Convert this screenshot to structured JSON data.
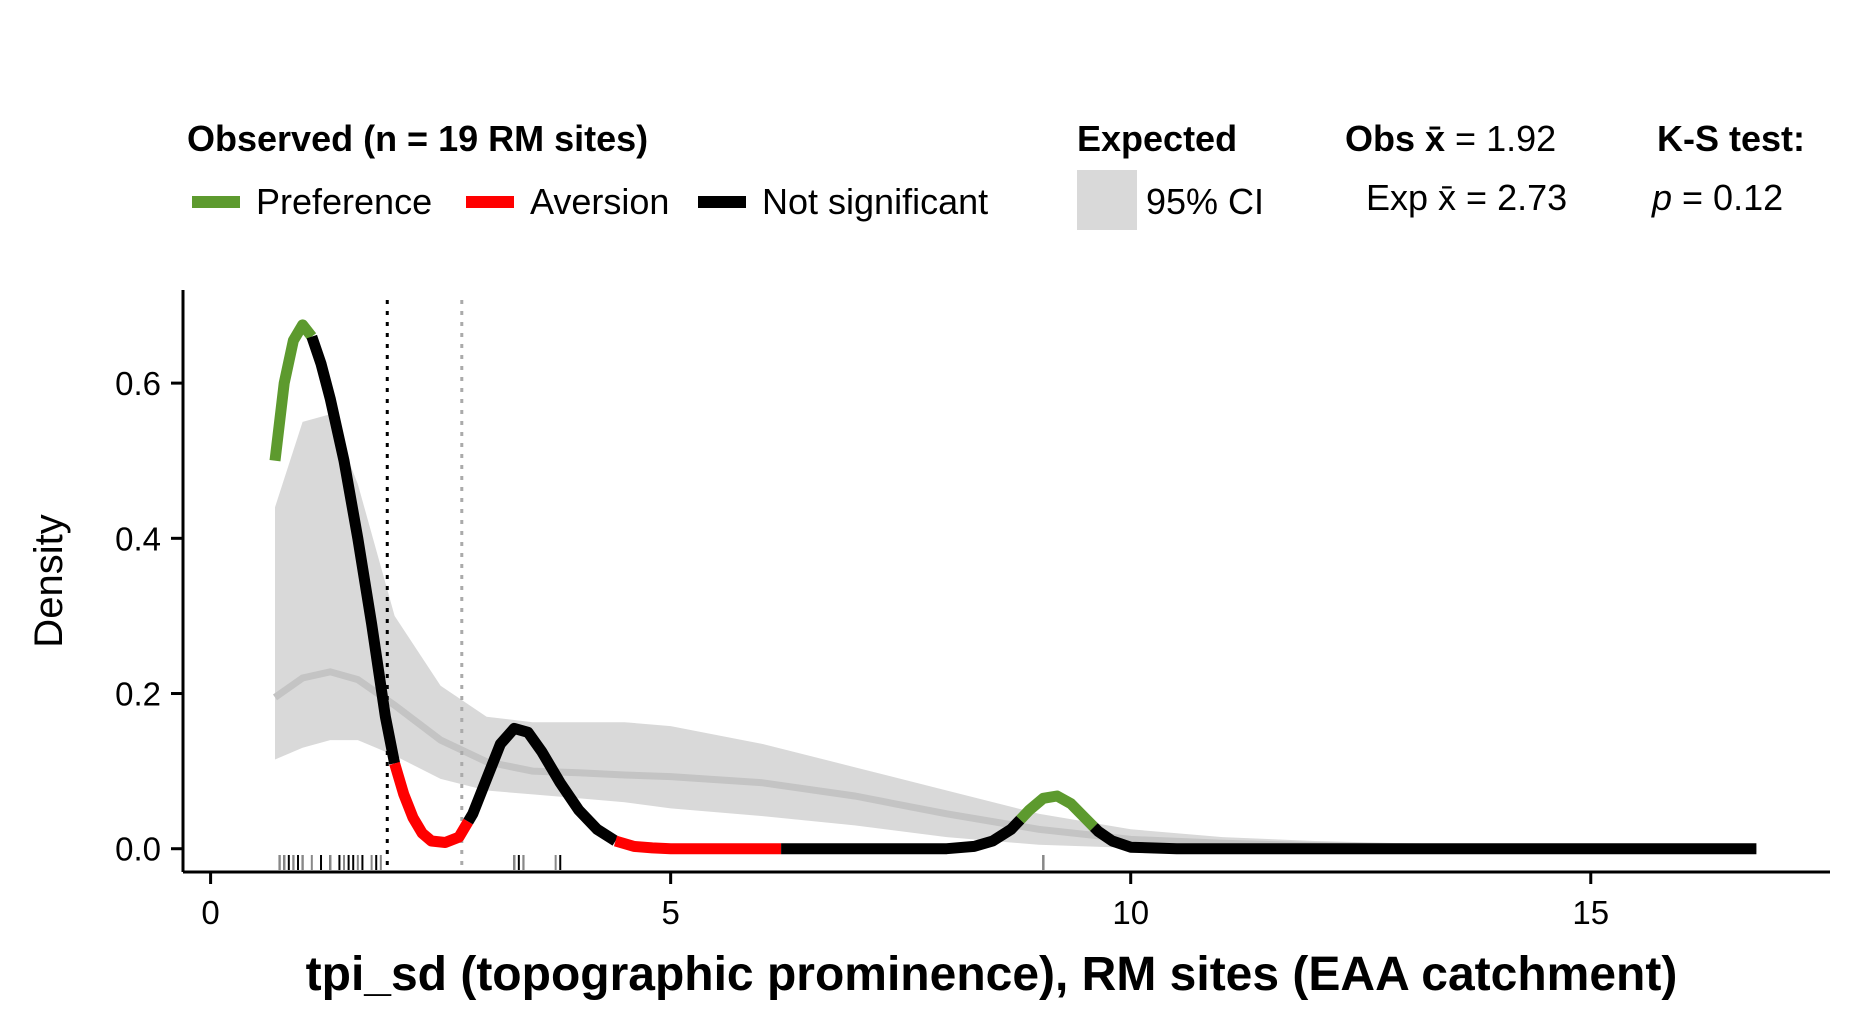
{
  "legend": {
    "observed_title": "Observed (n = 19 RM sites)",
    "preference": "Preference",
    "aversion": "Aversion",
    "not_significant": "Not significant",
    "expected_title": "Expected",
    "ci_label": "95% CI",
    "obs_mean_prefix": "Obs",
    "obs_mean_symbol": "x̄",
    "obs_mean_value": " = 1.92",
    "exp_mean_prefix": "Exp",
    "exp_mean_symbol": "x̄",
    "exp_mean_value": " = 2.73",
    "ks_title": "K-S test:",
    "ks_p_symbol": "p",
    "ks_p_value": " = 0.12"
  },
  "colors": {
    "preference": "#5d9a2e",
    "aversion": "#ff0000",
    "not_significant": "#000000",
    "ci_band": "#d9d9d9",
    "expected_line": "#c4c4c4",
    "obs_mean_line": "#000000",
    "exp_mean_line": "#aaaaaa"
  },
  "chart_data": {
    "type": "line",
    "xlabel": "tpi_sd (topographic prominence), RM sites (EAA catchment)",
    "ylabel": "Density",
    "xlim": [
      -0.3,
      17.6
    ],
    "ylim": [
      -0.03,
      0.72
    ],
    "xticks": [
      0,
      5,
      10,
      15
    ],
    "xtick_labels": [
      "0",
      "5",
      "10",
      "15"
    ],
    "yticks": [
      0.0,
      0.2,
      0.4,
      0.6
    ],
    "ytick_labels": [
      "0.0",
      "0.2",
      "0.4",
      "0.6"
    ],
    "observed_mean": 1.92,
    "expected_mean": 2.73,
    "observed_density": {
      "x": [
        0.7,
        0.8,
        0.9,
        1.0,
        1.1,
        1.2,
        1.3,
        1.45,
        1.6,
        1.75,
        1.9,
        2.0,
        2.1,
        2.2,
        2.3,
        2.4,
        2.55,
        2.7,
        2.85,
        3.0,
        3.15,
        3.3,
        3.45,
        3.6,
        3.8,
        4.0,
        4.2,
        4.4,
        4.6,
        4.8,
        5.0,
        5.5,
        6.0,
        6.5,
        7.0,
        7.5,
        8.0,
        8.3,
        8.5,
        8.7,
        8.9,
        9.05,
        9.2,
        9.35,
        9.5,
        9.65,
        9.8,
        10.0,
        10.5,
        11.0,
        12.0,
        13.0,
        14.0,
        15.0,
        16.0,
        16.8
      ],
      "y": [
        0.5,
        0.6,
        0.655,
        0.675,
        0.66,
        0.625,
        0.58,
        0.5,
        0.4,
        0.29,
        0.17,
        0.11,
        0.07,
        0.04,
        0.02,
        0.01,
        0.008,
        0.015,
        0.045,
        0.09,
        0.135,
        0.155,
        0.15,
        0.125,
        0.085,
        0.05,
        0.025,
        0.01,
        0.003,
        0.001,
        0.0,
        0.0,
        0.0,
        0.0,
        0.0,
        0.0,
        0.0,
        0.003,
        0.01,
        0.025,
        0.05,
        0.065,
        0.068,
        0.058,
        0.04,
        0.022,
        0.01,
        0.002,
        0.0,
        0.0,
        0.0,
        0.0,
        0.0,
        0.0,
        0.0,
        0.0
      ],
      "segments": [
        {
          "class": "preference",
          "x_range": [
            0.7,
            1.1
          ]
        },
        {
          "class": "not_significant",
          "x_range": [
            1.1,
            2.0
          ]
        },
        {
          "class": "aversion",
          "x_range": [
            2.0,
            2.8
          ]
        },
        {
          "class": "not_significant",
          "x_range": [
            2.8,
            4.4
          ]
        },
        {
          "class": "aversion",
          "x_range": [
            4.4,
            6.2
          ]
        },
        {
          "class": "not_significant",
          "x_range": [
            6.2,
            8.8
          ]
        },
        {
          "class": "preference",
          "x_range": [
            8.8,
            9.6
          ]
        },
        {
          "class": "not_significant",
          "x_range": [
            9.6,
            16.8
          ]
        }
      ]
    },
    "expected_density": {
      "x": [
        0.7,
        1.0,
        1.3,
        1.6,
        2.0,
        2.5,
        3.0,
        3.5,
        4.0,
        4.5,
        5.0,
        6.0,
        7.0,
        8.0,
        9.0,
        10.0,
        11.0,
        12.0,
        13.0,
        14.0,
        15.0,
        16.0,
        16.8
      ],
      "mean": [
        0.195,
        0.22,
        0.228,
        0.218,
        0.185,
        0.14,
        0.112,
        0.1,
        0.098,
        0.095,
        0.093,
        0.085,
        0.068,
        0.045,
        0.025,
        0.012,
        0.007,
        0.004,
        0.002,
        0.001,
        0.001,
        0.0,
        0.0
      ],
      "ci_lower": [
        0.115,
        0.13,
        0.14,
        0.14,
        0.12,
        0.09,
        0.075,
        0.07,
        0.065,
        0.06,
        0.052,
        0.042,
        0.03,
        0.015,
        0.005,
        0.001,
        0.0,
        0.0,
        0.0,
        0.0,
        0.0,
        0.0,
        0.0
      ],
      "ci_upper": [
        0.44,
        0.55,
        0.56,
        0.47,
        0.3,
        0.21,
        0.17,
        0.163,
        0.163,
        0.163,
        0.158,
        0.135,
        0.105,
        0.075,
        0.045,
        0.025,
        0.015,
        0.01,
        0.007,
        0.005,
        0.003,
        0.002,
        0.001
      ]
    },
    "rug_observed": [
      0.75,
      0.8,
      0.85,
      0.9,
      0.95,
      1.0,
      1.2,
      1.3,
      1.4,
      1.5,
      1.55,
      1.65,
      1.8,
      3.3,
      3.35,
      3.4,
      3.8,
      9.05
    ],
    "rug_expected": [
      0.75,
      0.8,
      0.9,
      1.0,
      1.1,
      1.3,
      1.45,
      1.6,
      1.75,
      1.85,
      3.3,
      3.4,
      3.75,
      9.05
    ]
  }
}
